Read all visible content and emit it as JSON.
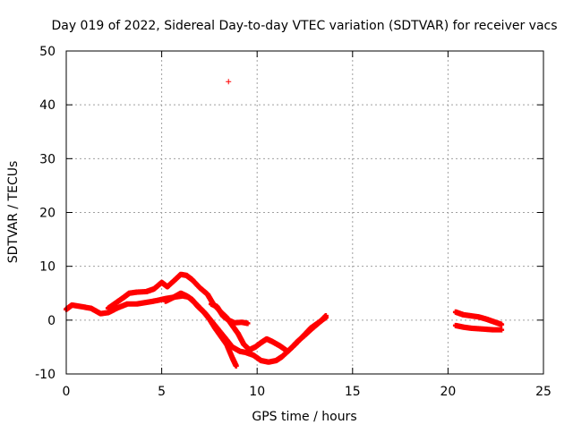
{
  "chart_data": {
    "type": "scatter",
    "title": "Day 019 of 2022, Sidereal Day-to-day VTEC variation (SDTVAR) for receiver vacs",
    "xlabel": "GPS time / hours",
    "ylabel": "SDTVAR / TECUs",
    "xlim": [
      0,
      25
    ],
    "ylim": [
      -10,
      50
    ],
    "xticks": [
      0,
      5,
      10,
      15,
      20,
      25
    ],
    "yticks": [
      -10,
      0,
      10,
      20,
      30,
      40,
      50
    ],
    "grid": true,
    "marker": "+",
    "series": [
      {
        "name": "SDTVAR",
        "color": "#ff0000",
        "segments": [
          [
            [
              0.0,
              2.0
            ],
            [
              0.3,
              2.8
            ],
            [
              0.8,
              2.5
            ],
            [
              1.3,
              2.2
            ],
            [
              1.8,
              1.2
            ],
            [
              2.2,
              1.4
            ],
            [
              2.7,
              2.3
            ],
            [
              3.2,
              3.0
            ],
            [
              3.7,
              3.0
            ],
            [
              4.2,
              3.3
            ],
            [
              4.7,
              3.6
            ],
            [
              5.2,
              4.0
            ],
            [
              5.7,
              4.3
            ],
            [
              6.1,
              4.5
            ],
            [
              6.4,
              4.3
            ],
            [
              6.8,
              3.0
            ],
            [
              7.3,
              1.2
            ],
            [
              7.8,
              -1.0
            ],
            [
              8.3,
              -3.2
            ],
            [
              8.7,
              -5.0
            ],
            [
              9.1,
              -5.8
            ],
            [
              9.4,
              -6.0
            ],
            [
              9.8,
              -6.5
            ],
            [
              10.2,
              -7.5
            ],
            [
              10.6,
              -7.8
            ],
            [
              11.0,
              -7.5
            ],
            [
              11.3,
              -6.8
            ],
            [
              11.7,
              -5.5
            ],
            [
              12.1,
              -4.0
            ],
            [
              12.5,
              -2.8
            ],
            [
              12.9,
              -1.5
            ],
            [
              13.3,
              -0.3
            ],
            [
              13.6,
              0.8
            ]
          ],
          [
            [
              2.2,
              2.2
            ],
            [
              2.6,
              3.2
            ],
            [
              3.0,
              4.2
            ],
            [
              3.3,
              5.0
            ],
            [
              3.7,
              5.2
            ],
            [
              4.2,
              5.3
            ],
            [
              4.6,
              5.8
            ],
            [
              5.0,
              7.0
            ],
            [
              5.3,
              6.2
            ],
            [
              5.7,
              7.5
            ],
            [
              6.0,
              8.5
            ],
            [
              6.3,
              8.3
            ],
            [
              6.6,
              7.5
            ],
            [
              7.0,
              6.0
            ],
            [
              7.4,
              4.8
            ],
            [
              7.7,
              3.0
            ],
            [
              8.1,
              1.5
            ],
            [
              8.4,
              0.5
            ],
            [
              8.7,
              -1.0
            ],
            [
              9.0,
              -2.5
            ],
            [
              9.3,
              -4.5
            ],
            [
              9.6,
              -5.5
            ],
            [
              9.9,
              -5.0
            ],
            [
              10.2,
              -4.2
            ],
            [
              10.5,
              -3.5
            ],
            [
              10.8,
              -4.0
            ],
            [
              11.2,
              -4.8
            ],
            [
              11.6,
              -5.8
            ],
            [
              12.0,
              -4.5
            ],
            [
              12.4,
              -3.0
            ],
            [
              12.8,
              -1.5
            ],
            [
              13.2,
              -0.5
            ],
            [
              13.6,
              0.5
            ]
          ],
          [
            [
              5.2,
              3.5
            ],
            [
              5.6,
              4.2
            ],
            [
              6.0,
              5.0
            ],
            [
              6.3,
              4.5
            ],
            [
              6.6,
              3.8
            ],
            [
              6.9,
              2.5
            ],
            [
              7.2,
              1.5
            ],
            [
              7.5,
              0.2
            ],
            [
              7.8,
              -1.5
            ],
            [
              8.1,
              -3.0
            ],
            [
              8.4,
              -4.5
            ],
            [
              8.7,
              -7.0
            ],
            [
              8.9,
              -8.5
            ]
          ],
          [
            [
              7.6,
              3.0
            ],
            [
              7.9,
              2.5
            ],
            [
              8.2,
              0.8
            ],
            [
              8.5,
              0.0
            ],
            [
              8.8,
              -0.5
            ],
            [
              9.2,
              -0.4
            ],
            [
              9.5,
              -0.6
            ]
          ],
          [
            [
              20.4,
              1.5
            ],
            [
              20.8,
              1.0
            ],
            [
              21.2,
              0.8
            ],
            [
              21.6,
              0.6
            ],
            [
              22.0,
              0.2
            ],
            [
              22.4,
              -0.3
            ],
            [
              22.8,
              -0.8
            ]
          ],
          [
            [
              20.4,
              -1.0
            ],
            [
              20.8,
              -1.3
            ],
            [
              21.2,
              -1.5
            ],
            [
              21.6,
              -1.6
            ],
            [
              22.0,
              -1.7
            ],
            [
              22.4,
              -1.8
            ],
            [
              22.8,
              -1.8
            ]
          ]
        ],
        "outliers": [
          [
            8.5,
            44.3
          ]
        ]
      }
    ]
  }
}
